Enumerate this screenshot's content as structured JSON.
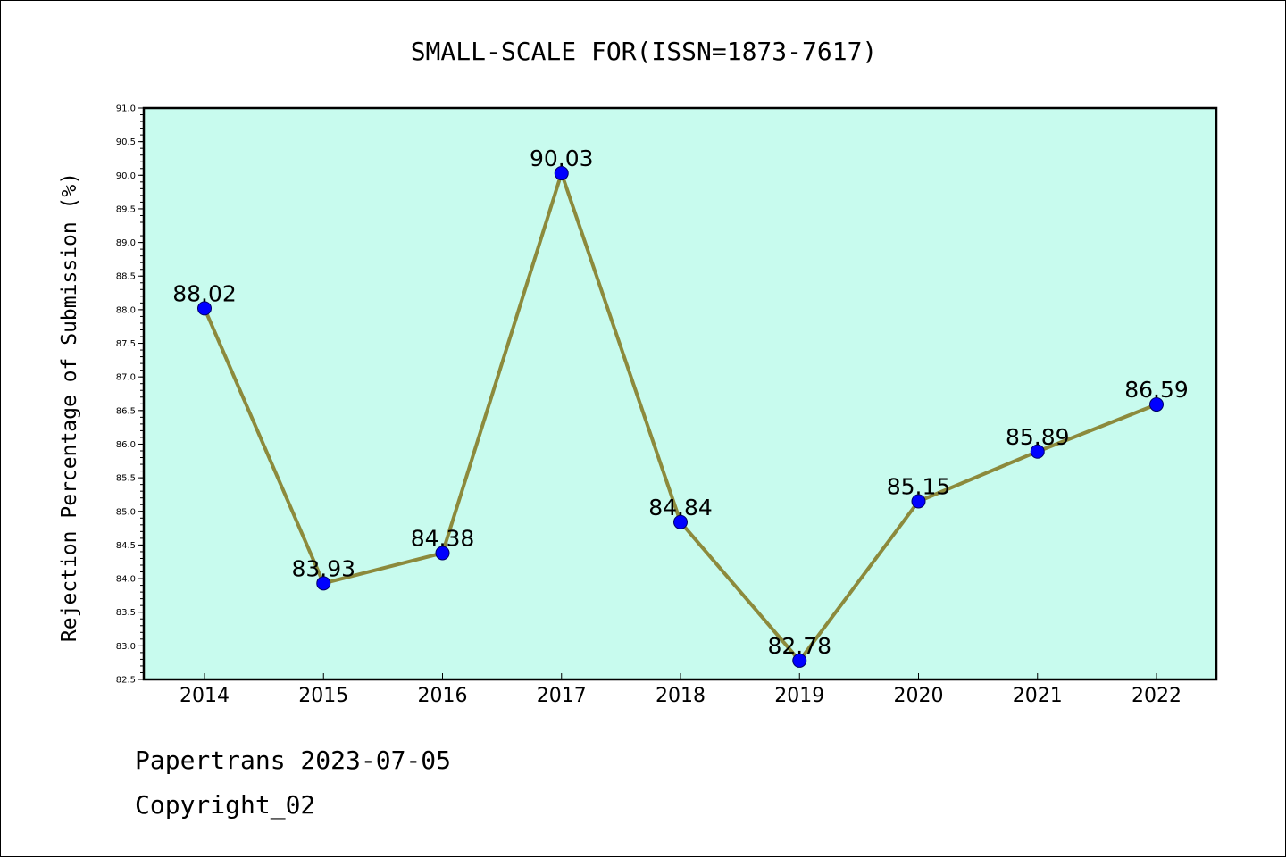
{
  "chart_data": {
    "type": "line",
    "title": "SMALL-SCALE FOR(ISSN=1873-7617)",
    "xlabel": "",
    "ylabel": "Rejection Percentage of Submission (%)",
    "categories": [
      "2014",
      "2015",
      "2016",
      "2017",
      "2018",
      "2019",
      "2020",
      "2021",
      "2022"
    ],
    "series": [
      {
        "values": [
          88.02,
          83.93,
          84.38,
          90.03,
          84.84,
          82.78,
          85.15,
          85.89,
          86.59
        ],
        "labels": [
          "88.02",
          "83.93",
          "84.38",
          "90.03",
          "84.84",
          "82.78",
          "85.15",
          "85.89",
          "86.59"
        ]
      }
    ],
    "ylim": [
      82.5,
      91.0
    ],
    "yticks": [
      82.5,
      83.0,
      83.5,
      84.0,
      84.5,
      85.0,
      85.5,
      86.0,
      86.5,
      87.0,
      87.5,
      88.0,
      88.5,
      89.0,
      89.5,
      90.0,
      90.5,
      91.0
    ],
    "ytick_labels": [
      "82.5",
      "83.0",
      "83.5",
      "84.0",
      "84.5",
      "85.0",
      "85.5",
      "86.0",
      "86.5",
      "87.0",
      "87.5",
      "88.0",
      "88.5",
      "89.0",
      "89.5",
      "90.0",
      "90.5",
      "91.0"
    ],
    "grid": false,
    "legend": "none",
    "colors": {
      "plot_background": "#c8fbee",
      "line": "#8c8a3c",
      "marker": "#0000ff",
      "axes": "#000000"
    }
  },
  "footer": {
    "line1": "Papertrans 2023-07-05",
    "line2": "Copyright_02"
  }
}
